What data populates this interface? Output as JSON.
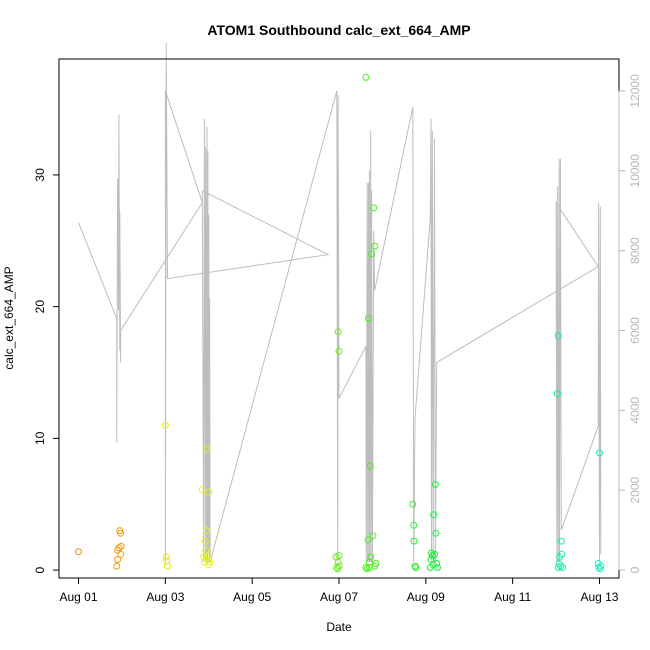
{
  "chart_data": {
    "type": "scatter",
    "title": "ATOM1 Southbound calc_ext_664_AMP",
    "xlabel": "Date",
    "ylabel": "calc_ext_664_AMP",
    "x_unit": "days since Aug 01",
    "xlim": [
      -0.45,
      12.45
    ],
    "ylim": [
      -0.6,
      38.8
    ],
    "x_ticks": [
      {
        "value": 0,
        "label": "Aug 01"
      },
      {
        "value": 2,
        "label": "Aug 03"
      },
      {
        "value": 4,
        "label": "Aug 05"
      },
      {
        "value": 6,
        "label": "Aug 07"
      },
      {
        "value": 8,
        "label": "Aug 09"
      },
      {
        "value": 10,
        "label": "Aug 11"
      },
      {
        "value": 12,
        "label": "Aug 13"
      }
    ],
    "y_ticks": [
      0,
      10,
      20,
      30
    ],
    "secondary_axis": {
      "side": "right",
      "color": "#b8b8b8",
      "ylim": [
        -200,
        12800
      ],
      "ticks": [
        0,
        2000,
        4000,
        6000,
        8000,
        10000,
        12000
      ]
    },
    "points_series": {
      "name": "calc_ext_664_AMP",
      "marker": "open-circle",
      "points": [
        {
          "x": 0.0,
          "y": 1.4,
          "color": "#f08c0a"
        },
        {
          "x": 0.88,
          "y": 0.3,
          "color": "#f49a10"
        },
        {
          "x": 0.9,
          "y": 0.8,
          "color": "#f49a10"
        },
        {
          "x": 0.9,
          "y": 1.5,
          "color": "#f49a10"
        },
        {
          "x": 0.93,
          "y": 1.7,
          "color": "#f49a10"
        },
        {
          "x": 0.95,
          "y": 3.0,
          "color": "#f49a10"
        },
        {
          "x": 0.97,
          "y": 2.8,
          "color": "#f49a10"
        },
        {
          "x": 0.97,
          "y": 1.2,
          "color": "#f49a10"
        },
        {
          "x": 0.98,
          "y": 1.8,
          "color": "#f49a10"
        },
        {
          "x": 2.0,
          "y": 11.0,
          "color": "#e6e61a"
        },
        {
          "x": 2.02,
          "y": 1.0,
          "color": "#e6e61a"
        },
        {
          "x": 2.03,
          "y": 0.7,
          "color": "#e6e61a"
        },
        {
          "x": 2.05,
          "y": 0.3,
          "color": "#e6e61a"
        },
        {
          "x": 2.85,
          "y": 6.1,
          "color": "#e6f01a"
        },
        {
          "x": 2.88,
          "y": 1.0,
          "color": "#e6f01a"
        },
        {
          "x": 2.9,
          "y": 0.6,
          "color": "#e6f01a"
        },
        {
          "x": 2.92,
          "y": 2.2,
          "color": "#e6f01a"
        },
        {
          "x": 2.93,
          "y": 1.5,
          "color": "#e6f01a"
        },
        {
          "x": 2.95,
          "y": 3.0,
          "color": "#e6f01a"
        },
        {
          "x": 2.96,
          "y": 9.2,
          "color": "#e6f01a"
        },
        {
          "x": 2.97,
          "y": 1.0,
          "color": "#e6f01a"
        },
        {
          "x": 2.98,
          "y": 0.8,
          "color": "#e6f01a"
        },
        {
          "x": 3.0,
          "y": 0.4,
          "color": "#e6f01a"
        },
        {
          "x": 3.0,
          "y": 5.9,
          "color": "#e6f01a"
        },
        {
          "x": 3.02,
          "y": 0.6,
          "color": "#e6f01a"
        },
        {
          "x": 5.93,
          "y": 1.0,
          "color": "#6af01a"
        },
        {
          "x": 5.95,
          "y": 0.2,
          "color": "#6af01a"
        },
        {
          "x": 5.97,
          "y": 0.1,
          "color": "#6af01a"
        },
        {
          "x": 5.98,
          "y": 0.6,
          "color": "#6af01a"
        },
        {
          "x": 5.98,
          "y": 18.1,
          "color": "#6af01a"
        },
        {
          "x": 6.0,
          "y": 1.1,
          "color": "#6af01a"
        },
        {
          "x": 6.0,
          "y": 16.6,
          "color": "#6af01a"
        },
        {
          "x": 6.0,
          "y": 0.3,
          "color": "#6af01a"
        },
        {
          "x": 6.62,
          "y": 37.4,
          "color": "#4af01a"
        },
        {
          "x": 6.62,
          "y": 0.2,
          "color": "#4af01a"
        },
        {
          "x": 6.65,
          "y": 0.1,
          "color": "#4af01a"
        },
        {
          "x": 6.67,
          "y": 2.3,
          "color": "#4af01a"
        },
        {
          "x": 6.68,
          "y": 19.1,
          "color": "#4af01a"
        },
        {
          "x": 6.7,
          "y": 0.6,
          "color": "#4af01a"
        },
        {
          "x": 6.72,
          "y": 7.9,
          "color": "#4af01a"
        },
        {
          "x": 6.73,
          "y": 1.0,
          "color": "#4af01a"
        },
        {
          "x": 6.75,
          "y": 24.0,
          "color": "#4af01a"
        },
        {
          "x": 6.78,
          "y": 2.6,
          "color": "#4af01a"
        },
        {
          "x": 6.8,
          "y": 27.5,
          "color": "#4af01a"
        },
        {
          "x": 6.82,
          "y": 24.6,
          "color": "#4af01a"
        },
        {
          "x": 6.82,
          "y": 0.3,
          "color": "#4af01a"
        },
        {
          "x": 6.85,
          "y": 0.5,
          "color": "#4af01a"
        },
        {
          "x": 6.7,
          "y": 0.2,
          "color": "#4af01a"
        },
        {
          "x": 7.7,
          "y": 5.0,
          "color": "#2af02a"
        },
        {
          "x": 7.72,
          "y": 3.4,
          "color": "#2af02a"
        },
        {
          "x": 7.73,
          "y": 2.2,
          "color": "#2af02a"
        },
        {
          "x": 7.75,
          "y": 0.3,
          "color": "#2af02a"
        },
        {
          "x": 7.77,
          "y": 0.2,
          "color": "#2af02a"
        },
        {
          "x": 8.1,
          "y": 0.2,
          "color": "#1af03a"
        },
        {
          "x": 8.12,
          "y": 0.8,
          "color": "#1af03a"
        },
        {
          "x": 8.13,
          "y": 1.3,
          "color": "#1af03a"
        },
        {
          "x": 8.15,
          "y": 1.1,
          "color": "#1af03a"
        },
        {
          "x": 8.17,
          "y": 0.4,
          "color": "#1af03a"
        },
        {
          "x": 8.18,
          "y": 4.2,
          "color": "#1af03a"
        },
        {
          "x": 8.2,
          "y": 1.2,
          "color": "#1af03a"
        },
        {
          "x": 8.22,
          "y": 6.5,
          "color": "#1af03a"
        },
        {
          "x": 8.23,
          "y": 2.8,
          "color": "#1af03a"
        },
        {
          "x": 8.25,
          "y": 0.5,
          "color": "#1af03a"
        },
        {
          "x": 8.27,
          "y": 0.2,
          "color": "#1af03a"
        },
        {
          "x": 11.03,
          "y": 13.4,
          "color": "#1af0a0"
        },
        {
          "x": 11.05,
          "y": 17.8,
          "color": "#1af0a0"
        },
        {
          "x": 11.05,
          "y": 0.2,
          "color": "#1af0a0"
        },
        {
          "x": 11.07,
          "y": 0.5,
          "color": "#1af0a0"
        },
        {
          "x": 11.08,
          "y": 1.0,
          "color": "#1af0a0"
        },
        {
          "x": 11.1,
          "y": 0.3,
          "color": "#1af0a0"
        },
        {
          "x": 11.12,
          "y": 2.2,
          "color": "#1af0a0"
        },
        {
          "x": 11.13,
          "y": 1.2,
          "color": "#1af0a0"
        },
        {
          "x": 11.15,
          "y": 0.2,
          "color": "#1af0a0"
        },
        {
          "x": 11.97,
          "y": 0.5,
          "color": "#1af0c0"
        },
        {
          "x": 11.98,
          "y": 0.2,
          "color": "#1af0c0"
        },
        {
          "x": 12.0,
          "y": 8.9,
          "color": "#1af0c0"
        },
        {
          "x": 12.02,
          "y": 0.1,
          "color": "#1af0c0"
        },
        {
          "x": 12.03,
          "y": 0.3,
          "color": "#1af0c0"
        }
      ]
    },
    "line_series": {
      "name": "secondary line",
      "color": "#bdbdbd",
      "axis": "right",
      "points": [
        [
          0.0,
          8700
        ],
        [
          0.88,
          6300
        ],
        [
          0.88,
          3200
        ],
        [
          0.9,
          9800
        ],
        [
          0.92,
          6500
        ],
        [
          0.93,
          11400
        ],
        [
          0.95,
          5500
        ],
        [
          0.95,
          9000
        ],
        [
          0.97,
          5200
        ],
        [
          0.97,
          6000
        ],
        [
          2.85,
          9200
        ],
        [
          2.0,
          12000
        ],
        [
          2.0,
          200
        ],
        [
          2.02,
          13200
        ],
        [
          2.05,
          7300
        ],
        [
          5.75,
          7900
        ],
        [
          2.85,
          9500
        ],
        [
          2.88,
          200
        ],
        [
          2.9,
          11300
        ],
        [
          2.92,
          200
        ],
        [
          2.93,
          10600
        ],
        [
          2.95,
          200
        ],
        [
          2.96,
          11100
        ],
        [
          2.97,
          200
        ],
        [
          2.98,
          10500
        ],
        [
          2.99,
          500
        ],
        [
          3.0,
          8900
        ],
        [
          3.01,
          200
        ],
        [
          3.02,
          6800
        ],
        [
          3.03,
          200
        ],
        [
          5.95,
          12000
        ],
        [
          5.97,
          200
        ],
        [
          5.98,
          11900
        ],
        [
          6.0,
          4300
        ],
        [
          6.62,
          5600
        ],
        [
          6.63,
          200
        ],
        [
          6.65,
          9700
        ],
        [
          6.66,
          200
        ],
        [
          6.68,
          9700
        ],
        [
          6.69,
          200
        ],
        [
          6.7,
          10000
        ],
        [
          6.71,
          200
        ],
        [
          6.73,
          11000
        ],
        [
          6.74,
          200
        ],
        [
          6.75,
          9500
        ],
        [
          6.77,
          200
        ],
        [
          6.8,
          8500
        ],
        [
          6.82,
          7000
        ],
        [
          7.7,
          11600
        ],
        [
          7.72,
          200
        ],
        [
          7.75,
          3800
        ],
        [
          8.1,
          8800
        ],
        [
          8.12,
          11300
        ],
        [
          8.13,
          200
        ],
        [
          8.15,
          11000
        ],
        [
          8.17,
          200
        ],
        [
          8.2,
          10800
        ],
        [
          8.22,
          200
        ],
        [
          8.25,
          5200
        ],
        [
          11.97,
          7600
        ],
        [
          11.0,
          9200
        ],
        [
          11.02,
          200
        ],
        [
          11.03,
          9600
        ],
        [
          11.05,
          200
        ],
        [
          11.07,
          10300
        ],
        [
          11.08,
          200
        ],
        [
          11.1,
          10300
        ],
        [
          11.12,
          1000
        ],
        [
          11.97,
          3600
        ],
        [
          11.98,
          9200
        ],
        [
          12.0,
          200
        ],
        [
          12.02,
          9100
        ],
        [
          12.03,
          400
        ]
      ]
    }
  }
}
